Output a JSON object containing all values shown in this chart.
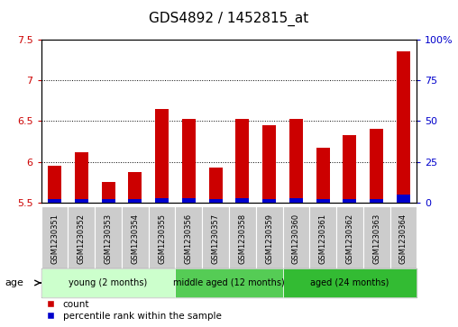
{
  "title": "GDS4892 / 1452815_at",
  "samples": [
    "GSM1230351",
    "GSM1230352",
    "GSM1230353",
    "GSM1230354",
    "GSM1230355",
    "GSM1230356",
    "GSM1230357",
    "GSM1230358",
    "GSM1230359",
    "GSM1230360",
    "GSM1230361",
    "GSM1230362",
    "GSM1230363",
    "GSM1230364"
  ],
  "count_values": [
    5.95,
    6.12,
    5.75,
    5.88,
    6.65,
    6.52,
    5.93,
    6.52,
    6.45,
    6.52,
    6.17,
    6.33,
    6.4,
    7.35
  ],
  "percentile_values": [
    2,
    2,
    2,
    2,
    3,
    3,
    2,
    3,
    2,
    3,
    2,
    2,
    2,
    5
  ],
  "ylim_left": [
    5.5,
    7.5
  ],
  "ylim_right": [
    0,
    100
  ],
  "yticks_left": [
    5.5,
    6.0,
    6.5,
    7.0,
    7.5
  ],
  "ytick_labels_left": [
    "5.5",
    "6",
    "6.5",
    "7",
    "7.5"
  ],
  "yticks_right": [
    0,
    25,
    50,
    75,
    100
  ],
  "ytick_labels_right": [
    "0",
    "25",
    "50",
    "75",
    "100%"
  ],
  "groups": [
    {
      "label": "young (2 months)",
      "indices": [
        0,
        1,
        2,
        3,
        4
      ],
      "color": "#ccffcc"
    },
    {
      "label": "middle aged (12 months)",
      "indices": [
        5,
        6,
        7,
        8
      ],
      "color": "#55cc55"
    },
    {
      "label": "aged (24 months)",
      "indices": [
        9,
        10,
        11,
        12,
        13
      ],
      "color": "#33bb33"
    }
  ],
  "bar_color_red": "#cc0000",
  "bar_color_blue": "#0000cc",
  "bar_width": 0.5,
  "background_color": "#ffffff",
  "sample_box_color": "#cccccc",
  "age_label": "age",
  "legend_count": "count",
  "legend_percentile": "percentile rank within the sample",
  "title_fontsize": 11,
  "axis_fontsize": 8,
  "label_fontsize": 7,
  "sample_fontsize": 6
}
